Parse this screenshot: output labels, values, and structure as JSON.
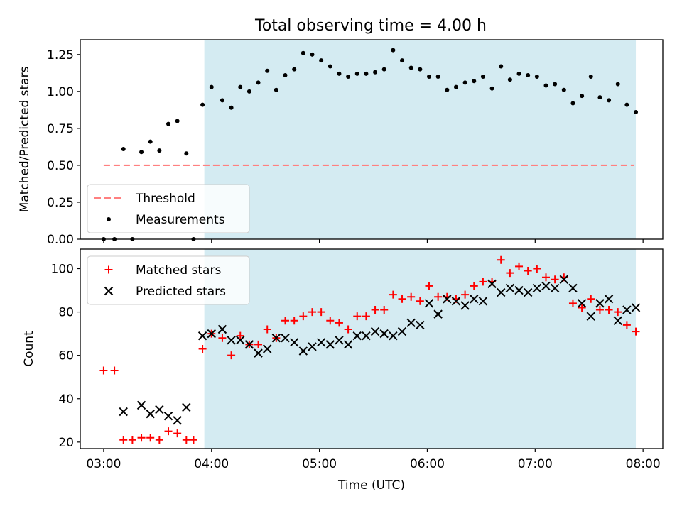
{
  "figure_title": "Total observing time = 4.00 h",
  "colors": {
    "shade": "#add8e6",
    "threshold": "#ff8080",
    "matched": "#ff0000",
    "measurements": "#000000",
    "predicted": "#000000"
  },
  "chart_data": [
    {
      "type": "scatter",
      "title": "Total observing time = 4.00 h",
      "xlabel": "",
      "ylabel": "Matched/Predicted stars",
      "xlim": [
        "02:47",
        "08:11"
      ],
      "ylim": [
        0,
        1.35
      ],
      "yticks": [
        0.0,
        0.25,
        0.5,
        0.75,
        1.0,
        1.25
      ],
      "ytick_labels": [
        "0.00",
        "0.25",
        "0.50",
        "0.75",
        "1.00",
        "1.25"
      ],
      "grid": false,
      "legend_position": "lower-left",
      "shaded_region": {
        "x_start": "03:56",
        "x_end": "07:56"
      },
      "threshold": {
        "name": "Threshold",
        "value": 0.5,
        "x_start": "03:00",
        "x_end": "07:55"
      },
      "series": [
        {
          "name": "Measurements",
          "x": [
            "03:00",
            "03:06",
            "03:11",
            "03:16",
            "03:21",
            "03:26",
            "03:31",
            "03:36",
            "03:41",
            "03:46",
            "03:50",
            "03:55",
            "04:00",
            "04:06",
            "04:11",
            "04:16",
            "04:21",
            "04:26",
            "04:31",
            "04:36",
            "04:41",
            "04:46",
            "04:51",
            "04:56",
            "05:01",
            "05:06",
            "05:11",
            "05:16",
            "05:21",
            "05:26",
            "05:31",
            "05:36",
            "05:41",
            "05:46",
            "05:51",
            "05:56",
            "06:01",
            "06:06",
            "06:11",
            "06:16",
            "06:21",
            "06:26",
            "06:31",
            "06:36",
            "06:41",
            "06:46",
            "06:51",
            "06:56",
            "07:01",
            "07:06",
            "07:11",
            "07:16",
            "07:21",
            "07:26",
            "07:31",
            "07:36",
            "07:41",
            "07:46",
            "07:51",
            "07:56"
          ],
          "y": [
            0.0,
            0.0,
            0.61,
            0.0,
            0.59,
            0.66,
            0.6,
            0.78,
            0.8,
            0.58,
            0.0,
            0.91,
            1.03,
            0.94,
            0.89,
            1.03,
            1.0,
            1.06,
            1.14,
            1.01,
            1.11,
            1.15,
            1.26,
            1.25,
            1.21,
            1.17,
            1.12,
            1.1,
            1.12,
            1.12,
            1.13,
            1.15,
            1.28,
            1.21,
            1.16,
            1.15,
            1.1,
            1.1,
            1.01,
            1.03,
            1.06,
            1.07,
            1.1,
            1.02,
            1.17,
            1.08,
            1.12,
            1.11,
            1.1,
            1.04,
            1.05,
            1.01,
            0.92,
            0.97,
            1.1,
            0.96,
            0.94,
            1.05,
            0.91,
            0.86
          ]
        }
      ]
    },
    {
      "type": "scatter",
      "title": "",
      "xlabel": "Time (UTC)",
      "ylabel": "Count",
      "xlim": [
        "02:47",
        "08:11"
      ],
      "ylim": [
        17,
        109
      ],
      "yticks": [
        20,
        40,
        60,
        80,
        100
      ],
      "xticks": [
        "03:00",
        "04:00",
        "05:00",
        "06:00",
        "07:00",
        "08:00"
      ],
      "grid": false,
      "legend_position": "upper-left",
      "shaded_region": {
        "x_start": "03:56",
        "x_end": "07:56"
      },
      "series": [
        {
          "name": "Matched stars",
          "marker": "plus",
          "x": [
            "03:00",
            "03:06",
            "03:11",
            "03:16",
            "03:21",
            "03:26",
            "03:31",
            "03:36",
            "03:41",
            "03:46",
            "03:50",
            "03:55",
            "04:00",
            "04:06",
            "04:11",
            "04:16",
            "04:21",
            "04:26",
            "04:31",
            "04:36",
            "04:41",
            "04:46",
            "04:51",
            "04:56",
            "05:01",
            "05:06",
            "05:11",
            "05:16",
            "05:21",
            "05:26",
            "05:31",
            "05:36",
            "05:41",
            "05:46",
            "05:51",
            "05:56",
            "06:01",
            "06:06",
            "06:11",
            "06:16",
            "06:21",
            "06:26",
            "06:31",
            "06:36",
            "06:41",
            "06:46",
            "06:51",
            "06:56",
            "07:01",
            "07:06",
            "07:11",
            "07:16",
            "07:21",
            "07:26",
            "07:31",
            "07:36",
            "07:41",
            "07:46",
            "07:51",
            "07:56"
          ],
          "y": [
            53,
            53,
            21,
            21,
            22,
            22,
            21,
            25,
            24,
            21,
            21,
            63,
            70,
            68,
            60,
            69,
            65,
            65,
            72,
            68,
            76,
            76,
            78,
            80,
            80,
            76,
            75,
            72,
            78,
            78,
            81,
            81,
            88,
            86,
            87,
            85,
            92,
            87,
            87,
            86,
            88,
            92,
            94,
            94,
            104,
            98,
            101,
            99,
            100,
            96,
            95,
            96,
            84,
            82,
            86,
            81,
            81,
            80,
            74,
            71
          ]
        },
        {
          "name": "Predicted stars",
          "marker": "x",
          "x": [
            "03:11",
            "03:21",
            "03:26",
            "03:31",
            "03:36",
            "03:41",
            "03:46",
            "03:55",
            "04:00",
            "04:06",
            "04:11",
            "04:16",
            "04:21",
            "04:26",
            "04:31",
            "04:36",
            "04:41",
            "04:46",
            "04:51",
            "04:56",
            "05:01",
            "05:06",
            "05:11",
            "05:16",
            "05:21",
            "05:26",
            "05:31",
            "05:36",
            "05:41",
            "05:46",
            "05:51",
            "05:56",
            "06:01",
            "06:06",
            "06:11",
            "06:16",
            "06:21",
            "06:26",
            "06:31",
            "06:36",
            "06:41",
            "06:46",
            "06:51",
            "06:56",
            "07:01",
            "07:06",
            "07:11",
            "07:16",
            "07:21",
            "07:26",
            "07:31",
            "07:36",
            "07:41",
            "07:46",
            "07:51",
            "07:56"
          ],
          "y": [
            34,
            37,
            33,
            35,
            32,
            30,
            36,
            69,
            70,
            72,
            67,
            67,
            65,
            61,
            63,
            68,
            68,
            66,
            62,
            64,
            66,
            65,
            67,
            65,
            69,
            69,
            71,
            70,
            69,
            71,
            75,
            74,
            84,
            79,
            86,
            85,
            83,
            86,
            85,
            93,
            89,
            91,
            90,
            89,
            91,
            92,
            91,
            95,
            91,
            84,
            78,
            84,
            86,
            76,
            81,
            82
          ]
        }
      ]
    }
  ]
}
